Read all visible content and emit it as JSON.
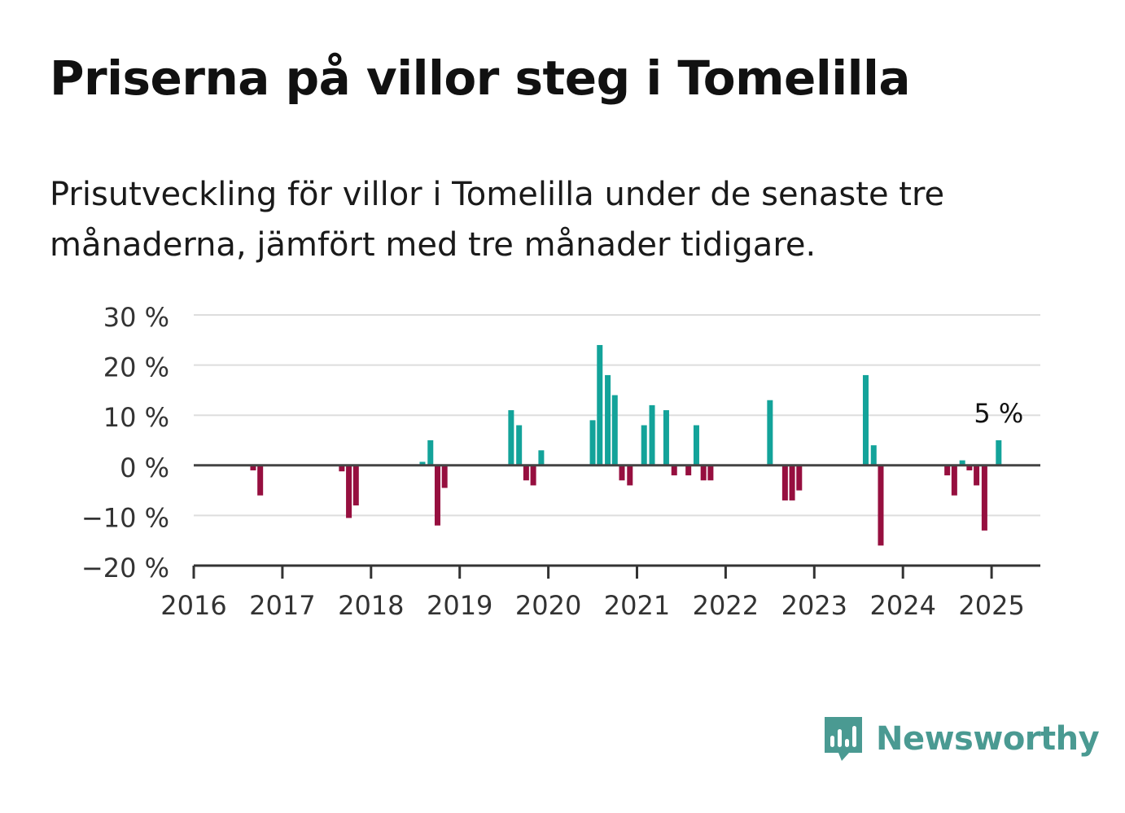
{
  "title": "Priserna på villor steg i Tomelilla",
  "subtitle": "Prisutveckling för villor i Tomelilla under de senaste tre månaderna, jämfört med tre månader tidigare.",
  "brand": {
    "name": "Newsworthy",
    "icon": "newsworthy-logo-icon",
    "color": "#4a9a92"
  },
  "chart_data": {
    "type": "bar",
    "xlabel": "",
    "ylabel": "",
    "ylim": [
      -20,
      30
    ],
    "xlim": [
      2016,
      2025.55
    ],
    "yticks": [
      30,
      20,
      10,
      0,
      -10,
      -20
    ],
    "ytick_labels": [
      "30 %",
      "20 %",
      "10 %",
      "0 %",
      "−10 %",
      "−20 %"
    ],
    "xticks": [
      2016,
      2017,
      2018,
      2019,
      2020,
      2021,
      2022,
      2023,
      2024,
      2025
    ],
    "xtick_labels": [
      "2016",
      "2017",
      "2018",
      "2019",
      "2020",
      "2021",
      "2022",
      "2023",
      "2024",
      "2025"
    ],
    "grid": true,
    "colors": {
      "positive": "#13a39a",
      "negative": "#960f3f"
    },
    "annotation": {
      "text": "5 %",
      "x": 2025.08,
      "y": 5
    },
    "x": [
      2016.67,
      2016.75,
      2017.67,
      2017.75,
      2017.83,
      2018.58,
      2018.67,
      2018.75,
      2018.83,
      2019.58,
      2019.67,
      2019.75,
      2019.83,
      2019.92,
      2020.5,
      2020.58,
      2020.67,
      2020.75,
      2020.83,
      2020.92,
      2021.08,
      2021.17,
      2021.33,
      2021.42,
      2021.58,
      2021.67,
      2021.75,
      2021.83,
      2022.5,
      2022.67,
      2022.75,
      2022.83,
      2023.58,
      2023.67,
      2023.75,
      2024.5,
      2024.58,
      2024.67,
      2024.75,
      2024.83,
      2024.92,
      2025.08
    ],
    "values": [
      -1,
      -6,
      -1.2,
      -10.5,
      -8,
      0.7,
      5,
      -12,
      -4.5,
      11,
      8,
      -3,
      -4,
      3,
      9,
      24,
      18,
      14,
      -3,
      -4,
      8,
      12,
      11,
      -2,
      -2,
      8,
      -3,
      -3,
      13,
      -7,
      -7,
      -5,
      18,
      4,
      -16,
      -2,
      -6,
      1,
      -1,
      -4,
      -13,
      5
    ]
  }
}
